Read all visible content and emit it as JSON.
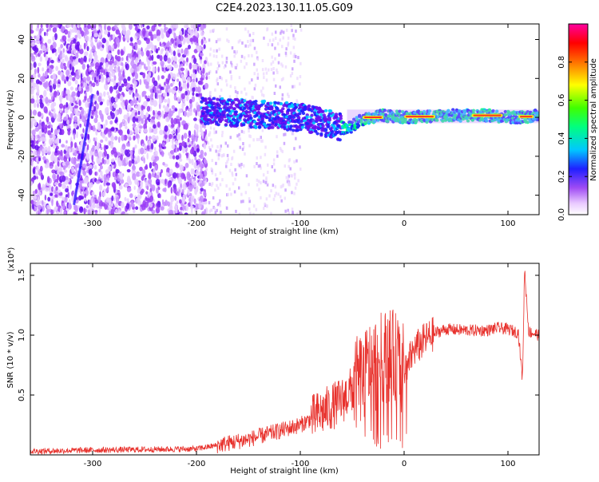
{
  "figure": {
    "title": "C2E4.2023.130.11.05.G09"
  },
  "chart_data": [
    {
      "type": "heatmap",
      "xlabel": "Height of straight line (km)",
      "ylabel": "Frequency (Hz)",
      "xlim": [
        -360,
        130
      ],
      "ylim": [
        -50,
        48
      ],
      "xticks": [
        -300,
        -200,
        -100,
        0,
        100
      ],
      "yticks": [
        -40,
        -20,
        0,
        20,
        40
      ],
      "colorbar": {
        "label": "Normalized spectral amplitude",
        "range": [
          0,
          1
        ],
        "ticks": [
          0.0,
          0.2,
          0.4,
          0.6,
          0.8
        ],
        "colormap": "white-purple-blue-cyan-green-yellow-red-magenta"
      },
      "trend": {
        "x": [
          -190,
          -150,
          -100,
          -75,
          -55,
          -40,
          -20,
          0,
          40,
          80,
          110,
          130
        ],
        "y": [
          3,
          2,
          0,
          -3,
          -6,
          -1,
          1,
          0,
          1,
          1,
          0,
          1
        ]
      }
    },
    {
      "type": "line",
      "xlabel": "Height of straight line (km)",
      "ylabel": "SNR (10 * v/v)",
      "yscale_label": "(x10⁴)",
      "xlim": [
        -360,
        130
      ],
      "ylim": [
        0,
        16000
      ],
      "xticks": [
        -300,
        -200,
        -100,
        0,
        100
      ],
      "yticks": [
        5000,
        10000,
        15000
      ],
      "ytick_labels": [
        "0.5",
        "1.0",
        "1.5"
      ],
      "series": [
        {
          "color": "#e8312c",
          "x": [
            -360,
            -300,
            -250,
            -200,
            -180,
            -150,
            -120,
            -100,
            -80,
            -60,
            -45,
            -35,
            -25,
            -15,
            -8,
            0,
            10,
            20,
            30,
            40,
            60,
            80,
            90,
            100,
            110,
            114,
            116,
            120,
            130
          ],
          "y": [
            300,
            400,
            450,
            500,
            800,
            1300,
            2000,
            2500,
            3500,
            4500,
            6000,
            7200,
            7800,
            8400,
            8000,
            7000,
            8800,
            9600,
            10200,
            10500,
            10400,
            10400,
            10600,
            10500,
            10200,
            6300,
            15500,
            10300,
            10000
          ]
        }
      ]
    }
  ]
}
